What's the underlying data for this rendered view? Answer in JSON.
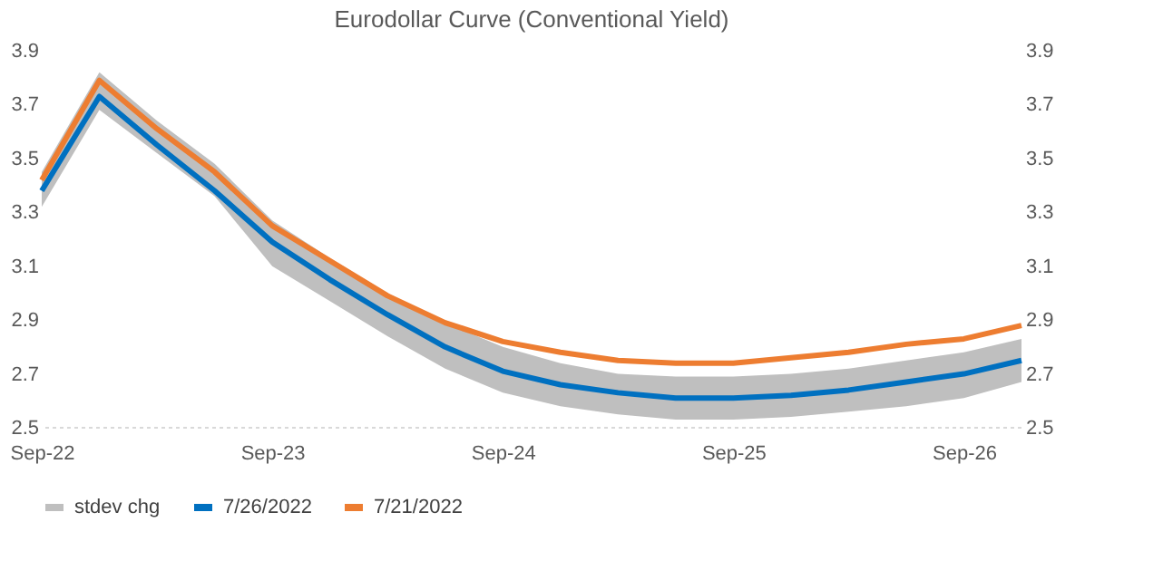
{
  "chart_data": {
    "type": "line",
    "title": "Eurodollar Curve (Conventional Yield)",
    "categories": [
      "Sep-22",
      null,
      null,
      null,
      "Sep-23",
      null,
      null,
      null,
      "Sep-24",
      null,
      null,
      null,
      "Sep-25",
      null,
      null,
      null,
      "Sep-26",
      null
    ],
    "series": [
      {
        "name": "stdev chg",
        "type": "area",
        "color": "#bfbfbf",
        "values": [
          null,
          null,
          null,
          null,
          null,
          null,
          null,
          null,
          null,
          null,
          null,
          null,
          null,
          null,
          null,
          null,
          null,
          null
        ],
        "lower": [
          3.32,
          3.68,
          3.52,
          3.36,
          3.1,
          2.97,
          2.84,
          2.72,
          2.63,
          2.58,
          2.55,
          2.53,
          2.53,
          2.54,
          2.56,
          2.58,
          2.61,
          2.67
        ],
        "upper": [
          3.45,
          3.82,
          3.64,
          3.48,
          3.27,
          3.13,
          3.0,
          2.89,
          2.8,
          2.74,
          2.7,
          2.69,
          2.69,
          2.7,
          2.72,
          2.75,
          2.78,
          2.83
        ]
      },
      {
        "name": "7/26/2022",
        "color": "#0070c0",
        "values": [
          3.38,
          3.73,
          3.55,
          3.38,
          3.19,
          3.05,
          2.92,
          2.8,
          2.71,
          2.66,
          2.63,
          2.61,
          2.61,
          2.62,
          2.64,
          2.67,
          2.7,
          2.75
        ]
      },
      {
        "name": "7/21/2022",
        "color": "#ed7d31",
        "values": [
          3.42,
          3.79,
          3.61,
          3.45,
          3.25,
          3.12,
          2.99,
          2.89,
          2.82,
          2.78,
          2.75,
          2.74,
          2.74,
          2.76,
          2.78,
          2.81,
          2.83,
          2.88
        ]
      }
    ],
    "ylim": [
      2.5,
      3.9
    ],
    "yticks": [
      2.5,
      2.7,
      2.9,
      3.1,
      3.3,
      3.5,
      3.7,
      3.9
    ],
    "y2lim": [
      2.5,
      3.9
    ],
    "y2ticks": [
      2.5,
      2.7,
      2.9,
      3.1,
      3.3,
      3.5,
      3.7,
      3.9
    ],
    "grid": false,
    "legend": "bottom",
    "marker": "none",
    "line_style": "solid"
  }
}
